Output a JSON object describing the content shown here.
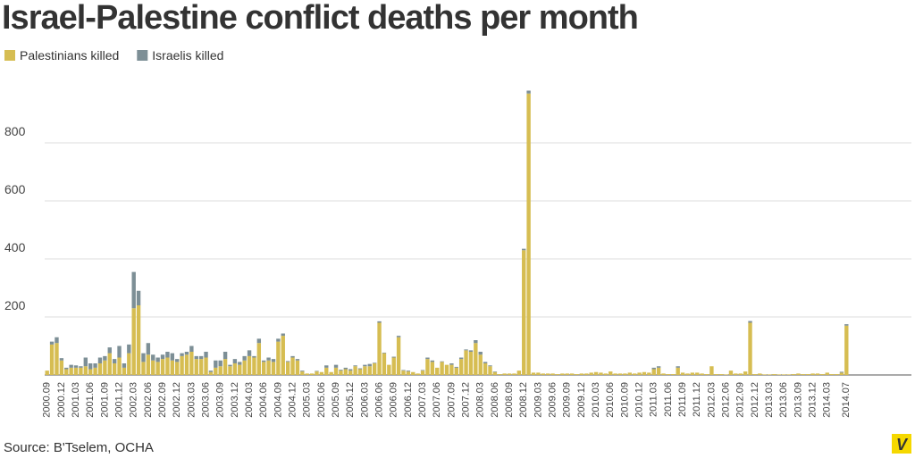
{
  "chart_data": {
    "type": "stacked-bar",
    "title": "Israel-Palestine conflict deaths per month",
    "source": "Source: B'Tselem, OCHA",
    "logo": "V",
    "categories": [
      "2000.09",
      null,
      null,
      "2000.12",
      null,
      null,
      "2001.03",
      null,
      null,
      "2001.06",
      null,
      null,
      "2001.09",
      null,
      null,
      "2001.12",
      null,
      null,
      "2002.03",
      null,
      null,
      "2002.06",
      null,
      null,
      "2002.09",
      null,
      null,
      "2002.12",
      null,
      null,
      "2003.03",
      null,
      null,
      "2003.06",
      null,
      null,
      "2003.09",
      null,
      null,
      "2003.12",
      null,
      null,
      "2004.03",
      null,
      null,
      "2004.06",
      null,
      null,
      "2004.09",
      null,
      null,
      "2004.12",
      null,
      null,
      "2005.03",
      null,
      null,
      "2005.06",
      null,
      null,
      "2005.09",
      null,
      null,
      "2005.12",
      null,
      null,
      "2006.03",
      null,
      null,
      "2006.06",
      null,
      null,
      "2006.09",
      null,
      null,
      "2006.12",
      null,
      null,
      "2007.03",
      null,
      null,
      "2007.06",
      null,
      null,
      "2007.09",
      null,
      null,
      "2007.12",
      null,
      null,
      "2008.03",
      null,
      null,
      "2008.06",
      null,
      null,
      "2008.09",
      null,
      null,
      "2008.12",
      null,
      null,
      "2009.03",
      null,
      null,
      "2009.06",
      null,
      null,
      "2009.09",
      null,
      null,
      "2009.12",
      null,
      null,
      "2010.03",
      null,
      null,
      "2010.06",
      null,
      null,
      "2010.09",
      null,
      null,
      "2010.12",
      null,
      null,
      "2011.03",
      null,
      null,
      "2011.06",
      null,
      null,
      "2011.09",
      null,
      null,
      "2011.12",
      null,
      null,
      "2012.03",
      null,
      null,
      "2012.06",
      null,
      null,
      "2012.09",
      null,
      null,
      "2012.12",
      null,
      null,
      "2013.03",
      null,
      null,
      "2013.06",
      null,
      null,
      "2013.09",
      null,
      null,
      "2013.12",
      null,
      null,
      "2014.03",
      null,
      null,
      null,
      "2014.07"
    ],
    "series": [
      {
        "name": "Palestinians killed",
        "color": "#d6bd52",
        "values": [
          15,
          105,
          110,
          50,
          20,
          25,
          25,
          25,
          30,
          20,
          25,
          40,
          50,
          75,
          40,
          60,
          25,
          75,
          230,
          240,
          45,
          70,
          50,
          45,
          55,
          60,
          50,
          45,
          65,
          70,
          80,
          55,
          55,
          60,
          10,
          25,
          30,
          55,
          30,
          40,
          35,
          50,
          65,
          60,
          110,
          45,
          50,
          45,
          115,
          135,
          45,
          60,
          50,
          12,
          5,
          5,
          12,
          10,
          25,
          10,
          25,
          15,
          20,
          15,
          30,
          20,
          30,
          30,
          40,
          180,
          75,
          35,
          60,
          130,
          15,
          12,
          10,
          5,
          15,
          55,
          45,
          25,
          45,
          35,
          35,
          25,
          55,
          85,
          80,
          110,
          70,
          40,
          30,
          10,
          3,
          5,
          5,
          5,
          15,
          430,
          970,
          8,
          8,
          5,
          5,
          5,
          3,
          5,
          5,
          5,
          3,
          5,
          5,
          8,
          10,
          8,
          5,
          12,
          5,
          5,
          5,
          8,
          5,
          8,
          10,
          8,
          20,
          25,
          5,
          3,
          3,
          25,
          8,
          5,
          8,
          8,
          5,
          3,
          30,
          3,
          3,
          2,
          15,
          5,
          5,
          12,
          180,
          3,
          5,
          2,
          2,
          3,
          2,
          2,
          2,
          3,
          5,
          3,
          3,
          5,
          5,
          3,
          8,
          3,
          3,
          8,
          170
        ]
      },
      {
        "name": "Israelis killed",
        "color": "#7d8f96",
        "values": [
          0,
          10,
          20,
          8,
          5,
          10,
          8,
          5,
          30,
          20,
          15,
          20,
          15,
          20,
          15,
          40,
          15,
          30,
          125,
          50,
          30,
          40,
          20,
          15,
          15,
          20,
          25,
          10,
          10,
          10,
          20,
          10,
          10,
          20,
          5,
          25,
          20,
          25,
          5,
          15,
          10,
          15,
          20,
          5,
          15,
          5,
          10,
          10,
          10,
          8,
          3,
          5,
          5,
          3,
          0,
          0,
          2,
          0,
          8,
          0,
          10,
          3,
          5,
          5,
          3,
          3,
          5,
          8,
          2,
          5,
          2,
          0,
          3,
          5,
          2,
          3,
          0,
          0,
          2,
          5,
          5,
          0,
          2,
          0,
          5,
          3,
          5,
          3,
          5,
          10,
          10,
          5,
          3,
          2,
          0,
          0,
          0,
          0,
          0,
          5,
          10,
          0,
          0,
          0,
          0,
          0,
          0,
          0,
          0,
          0,
          0,
          0,
          0,
          0,
          0,
          0,
          0,
          0,
          0,
          0,
          0,
          0,
          0,
          0,
          0,
          0,
          5,
          5,
          0,
          0,
          0,
          5,
          0,
          0,
          0,
          0,
          0,
          0,
          0,
          0,
          0,
          0,
          0,
          0,
          0,
          0,
          6,
          0,
          0,
          0,
          0,
          0,
          0,
          0,
          0,
          0,
          0,
          0,
          0,
          0,
          0,
          0,
          0,
          0,
          0,
          3,
          5
        ]
      }
    ],
    "ylim": [
      0,
      1000
    ],
    "yticks": [
      200,
      400,
      600,
      800
    ],
    "grid": true
  }
}
